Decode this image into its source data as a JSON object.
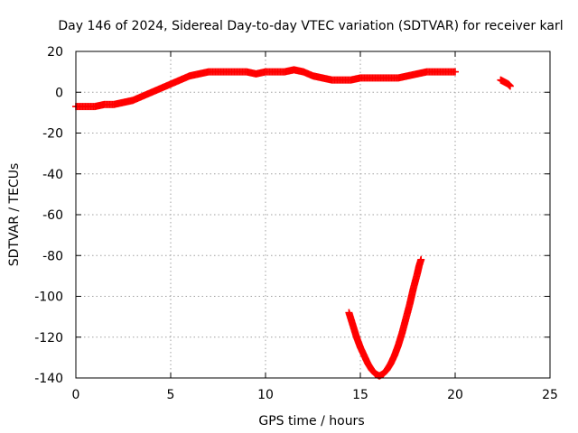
{
  "chart_data": {
    "type": "scatter",
    "title": "Day 146 of 2024, Sidereal Day-to-day VTEC variation (SDTVAR) for receiver karl",
    "xlabel": "GPS time / hours",
    "ylabel": "SDTVAR / TECUs",
    "xlim": [
      0,
      25
    ],
    "ylim": [
      -140,
      20
    ],
    "xticks": [
      0,
      5,
      10,
      15,
      20,
      25
    ],
    "yticks": [
      20,
      0,
      -20,
      -40,
      -60,
      -80,
      -100,
      -120,
      -140
    ],
    "xtick_labels": [
      "0",
      "5",
      "10",
      "15",
      "20",
      "25"
    ],
    "ytick_labels": [
      "20",
      "0",
      "-20",
      "-40",
      "-60",
      "-80",
      "-100",
      "-120",
      "-140"
    ],
    "grid": true,
    "legend": "none",
    "marker_color": "#ff0000",
    "marker": "plus",
    "series": [
      {
        "points": [
          [
            0.0,
            -7
          ],
          [
            0.5,
            -7
          ],
          [
            1.0,
            -7
          ],
          [
            1.5,
            -6
          ],
          [
            2.0,
            -6
          ],
          [
            2.5,
            -5
          ],
          [
            3.0,
            -4
          ],
          [
            3.5,
            -2
          ],
          [
            4.0,
            0
          ],
          [
            4.5,
            2
          ],
          [
            5.0,
            4
          ],
          [
            5.5,
            6
          ],
          [
            6.0,
            8
          ],
          [
            6.5,
            9
          ],
          [
            7.0,
            10
          ],
          [
            7.5,
            10
          ],
          [
            8.0,
            10
          ],
          [
            8.5,
            10
          ],
          [
            9.0,
            10
          ],
          [
            9.5,
            9
          ],
          [
            10.0,
            10
          ],
          [
            10.5,
            10
          ],
          [
            11.0,
            10
          ],
          [
            11.5,
            11
          ],
          [
            12.0,
            10
          ],
          [
            12.5,
            8
          ],
          [
            13.0,
            7
          ],
          [
            13.5,
            6
          ],
          [
            14.0,
            6
          ],
          [
            14.5,
            6
          ],
          [
            15.0,
            7
          ],
          [
            15.5,
            7
          ],
          [
            16.0,
            7
          ],
          [
            16.5,
            7
          ],
          [
            17.0,
            7
          ],
          [
            17.5,
            8
          ],
          [
            18.0,
            9
          ],
          [
            18.5,
            10
          ],
          [
            19.0,
            10
          ],
          [
            19.5,
            10
          ],
          [
            20.0,
            10
          ],
          [
            22.4,
            6
          ],
          [
            22.6,
            5
          ],
          [
            22.8,
            4
          ],
          [
            22.9,
            3
          ]
        ]
      },
      {
        "points": [
          [
            14.4,
            -108
          ],
          [
            14.6,
            -114
          ],
          [
            14.8,
            -120
          ],
          [
            15.0,
            -125
          ],
          [
            15.2,
            -129
          ],
          [
            15.4,
            -133
          ],
          [
            15.6,
            -136
          ],
          [
            15.8,
            -138
          ],
          [
            16.0,
            -139
          ],
          [
            16.2,
            -138
          ],
          [
            16.4,
            -136
          ],
          [
            16.6,
            -133
          ],
          [
            16.8,
            -129
          ],
          [
            17.0,
            -124
          ],
          [
            17.2,
            -118
          ],
          [
            17.4,
            -111
          ],
          [
            17.6,
            -104
          ],
          [
            17.8,
            -96
          ],
          [
            18.0,
            -89
          ],
          [
            18.1,
            -85
          ],
          [
            18.2,
            -82
          ]
        ]
      }
    ]
  }
}
